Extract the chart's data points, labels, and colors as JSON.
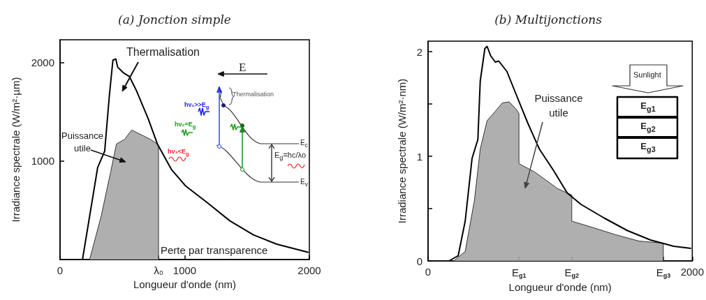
{
  "chart_data": [
    {
      "type": "line",
      "title": "(a) Jonction simple",
      "xlabel": "Longueur d'onde (nm)",
      "ylabel": "Irradiance spectrale (W/m²·µm)",
      "xlim": [
        0,
        2000
      ],
      "ylim": [
        0,
        2230
      ],
      "xticks": [
        0,
        {
          "value": 790,
          "label": "λ₀"
        },
        1000,
        2000
      ],
      "yticks": [
        1000,
        2000
      ],
      "marker": "none",
      "series": [
        {
          "type": "area",
          "color": "#a6a6a6",
          "x": [
            237,
            330,
            406,
            452,
            518,
            575,
            650,
            725,
            781,
            790,
            790
          ],
          "values": [
            0,
            440,
            889,
            1172,
            1220,
            1314,
            1267,
            1220,
            1172,
            1160,
            0
          ]
        },
        {
          "type": "line",
          "color": "#000000",
          "x": [
            180,
            302,
            358,
            396,
            424,
            447,
            462,
            509,
            556,
            612,
            706,
            781,
            894,
            1007,
            1176,
            1363,
            1551,
            1739,
            1993
          ],
          "values": [
            0,
            936,
            1100,
            1670,
            2023,
            2035,
            1953,
            1894,
            1858,
            1716,
            1433,
            1172,
            913,
            747,
            582,
            392,
            250,
            156,
            73
          ]
        }
      ],
      "annotations": [
        "Thermalisation",
        "Puissance utile",
        "Perte par transparence",
        "E",
        "Thermalisation",
        "hν₁>>E$_{g}$",
        "hν₂=E$_{g}$",
        "hν₃<E$_{g}$",
        "E$_{c}$",
        "E$_{v}$",
        "E$_{g}$=hc/λo"
      ]
    },
    {
      "type": "line",
      "title": "(b) Multijonctions",
      "xlabel": "Longueur d'onde (nm)",
      "ylabel": "Irradiance spectrale (W/m²·nm)",
      "xlim": [
        0,
        2000
      ],
      "ylim": [
        0,
        2.1
      ],
      "xticks": [
        0,
        {
          "value": 688,
          "label": "E$_{g1}$"
        },
        {
          "value": 1088,
          "label": "E$_{g2}$"
        },
        {
          "value": 1781,
          "label": "E$_{g3}$"
        },
        2000
      ],
      "yticks": [
        0,
        {
          "value": 0.5,
          "label": null
        },
        1,
        {
          "value": 1.5,
          "label": null
        },
        2
      ],
      "marker": "none",
      "series": [
        {
          "type": "area",
          "color": "#a6a6a6",
          "x": [
            193,
            281,
            351,
            395,
            447,
            509,
            562,
            614,
            667,
            688,
            688,
            807,
            895,
            982,
            1088,
            1088,
            1246,
            1421,
            1597,
            1781,
            1781
          ],
          "values": [
            0,
            0.09,
            0.58,
            1.07,
            1.34,
            1.43,
            1.51,
            1.52,
            1.45,
            1.41,
            0.93,
            0.85,
            0.77,
            0.69,
            0.63,
            0.38,
            0.32,
            0.25,
            0.19,
            0.17,
            0
          ]
        },
        {
          "type": "line",
          "color": "#000000",
          "x": [
            158,
            228,
            281,
            333,
            377,
            395,
            430,
            447,
            474,
            509,
            535,
            597,
            667,
            754,
            842,
            947,
            1053,
            1158,
            1333,
            1509,
            1684,
            1860,
            1991
          ],
          "values": [
            0,
            0.05,
            0.38,
            0.98,
            1.16,
            1.72,
            2.03,
            2.05,
            1.96,
            1.9,
            1.91,
            1.81,
            1.59,
            1.32,
            1.07,
            0.87,
            0.65,
            0.54,
            0.41,
            0.29,
            0.2,
            0.14,
            0.12
          ]
        }
      ],
      "annotations": [
        "Puissance utile",
        "Sunlight",
        "E$_{g1}$",
        "E$_{g2}$",
        "E$_{g3}$"
      ]
    }
  ]
}
